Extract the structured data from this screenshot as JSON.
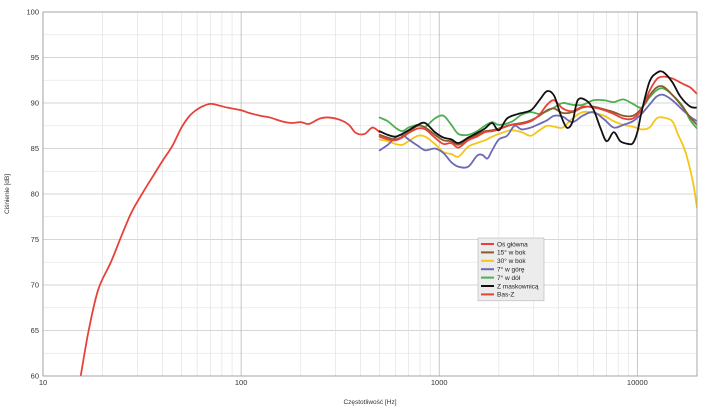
{
  "chart_data": {
    "type": "line",
    "xscale": "log",
    "xlim": [
      10,
      20000
    ],
    "ylim": [
      60,
      100
    ],
    "xlabel": "Częstotliwość [Hz]",
    "ylabel": "Ciśnienie [dB]",
    "grid": true,
    "legend_position": "center-right",
    "x_ticks": [
      10,
      100,
      1000,
      10000
    ],
    "x_tick_labels": [
      "10",
      "100",
      "1000",
      "10000"
    ],
    "y_ticks": [
      60,
      65,
      70,
      75,
      80,
      85,
      90,
      95,
      100
    ],
    "y_tick_labels": [
      "60",
      "65",
      "70",
      "75",
      "80",
      "85",
      "90",
      "95",
      "100"
    ],
    "series": [
      {
        "name": "Bas-Z",
        "color": "#e8413a",
        "points": [
          [
            15.5,
            60
          ],
          [
            17,
            65
          ],
          [
            19,
            69.5
          ],
          [
            22,
            72.5
          ],
          [
            25,
            75.5
          ],
          [
            28,
            78
          ],
          [
            32,
            80.2
          ],
          [
            36,
            82
          ],
          [
            40,
            83.6
          ],
          [
            45,
            85.3
          ],
          [
            50,
            87.3
          ],
          [
            55,
            88.6
          ],
          [
            60,
            89.3
          ],
          [
            65,
            89.7
          ],
          [
            70,
            89.9
          ],
          [
            75,
            89.8
          ],
          [
            85,
            89.5
          ],
          [
            100,
            89.2
          ],
          [
            110,
            88.9
          ],
          [
            125,
            88.6
          ],
          [
            140,
            88.4
          ],
          [
            160,
            88
          ],
          [
            180,
            87.8
          ],
          [
            200,
            87.9
          ],
          [
            220,
            87.7
          ],
          [
            250,
            88.3
          ],
          [
            280,
            88.4
          ],
          [
            320,
            88.1
          ],
          [
            350,
            87.6
          ],
          [
            380,
            86.7
          ],
          [
            420,
            86.6
          ],
          [
            460,
            87.3
          ],
          [
            500,
            86.8
          ]
        ]
      },
      {
        "name": "Oś główna",
        "color": "#e8413a",
        "points": [
          [
            500,
            86.3
          ],
          [
            550,
            86
          ],
          [
            600,
            85.9
          ],
          [
            650,
            86.2
          ],
          [
            700,
            86.7
          ],
          [
            780,
            87.2
          ],
          [
            850,
            87.1
          ],
          [
            950,
            86.2
          ],
          [
            1050,
            85.5
          ],
          [
            1150,
            85.6
          ],
          [
            1250,
            85.1
          ],
          [
            1400,
            85.9
          ],
          [
            1550,
            86.3
          ],
          [
            1700,
            86.8
          ],
          [
            1850,
            86.9
          ],
          [
            2000,
            87.1
          ],
          [
            2300,
            87.6
          ],
          [
            2600,
            87.7
          ],
          [
            2900,
            88
          ],
          [
            3200,
            88.7
          ],
          [
            3500,
            89.8
          ],
          [
            3800,
            90.3
          ],
          [
            4200,
            89.4
          ],
          [
            4700,
            89.1
          ],
          [
            5300,
            89.6
          ],
          [
            6000,
            89.5
          ],
          [
            6800,
            89.2
          ],
          [
            7600,
            88.8
          ],
          [
            8500,
            88.3
          ],
          [
            9500,
            88.3
          ],
          [
            10500,
            89.3
          ],
          [
            11500,
            91.3
          ],
          [
            12500,
            92.6
          ],
          [
            13500,
            92.9
          ],
          [
            15000,
            92.7
          ],
          [
            17000,
            92.1
          ],
          [
            18500,
            91.7
          ],
          [
            20000,
            91
          ]
        ]
      },
      {
        "name": "15° w bok",
        "color": "#8b5a2b",
        "points": [
          [
            500,
            86.5
          ],
          [
            550,
            86.2
          ],
          [
            600,
            86
          ],
          [
            650,
            86.3
          ],
          [
            700,
            86.8
          ],
          [
            780,
            87.5
          ],
          [
            850,
            87.3
          ],
          [
            950,
            86.5
          ],
          [
            1050,
            85.9
          ],
          [
            1150,
            85.8
          ],
          [
            1250,
            85.4
          ],
          [
            1400,
            86
          ],
          [
            1550,
            86.5
          ],
          [
            1700,
            86.9
          ],
          [
            1850,
            87
          ],
          [
            2000,
            87.2
          ],
          [
            2300,
            87.6
          ],
          [
            2600,
            87.8
          ],
          [
            2900,
            88.1
          ],
          [
            3200,
            88.6
          ],
          [
            3500,
            89.2
          ],
          [
            3800,
            89.4
          ],
          [
            4200,
            88.9
          ],
          [
            4700,
            89
          ],
          [
            5300,
            89.5
          ],
          [
            6000,
            89.6
          ],
          [
            6800,
            89.3
          ],
          [
            7600,
            89
          ],
          [
            8500,
            88.6
          ],
          [
            9500,
            88.6
          ],
          [
            10500,
            89.4
          ],
          [
            11500,
            90.8
          ],
          [
            12500,
            91.7
          ],
          [
            13500,
            91.8
          ],
          [
            15000,
            90.9
          ],
          [
            17000,
            89.5
          ],
          [
            18500,
            88.4
          ],
          [
            20000,
            87.6
          ]
        ]
      },
      {
        "name": "30° w bok",
        "color": "#f5c518",
        "points": [
          [
            500,
            86
          ],
          [
            550,
            85.8
          ],
          [
            600,
            85.5
          ],
          [
            650,
            85.4
          ],
          [
            700,
            85.8
          ],
          [
            780,
            86.4
          ],
          [
            850,
            86.3
          ],
          [
            950,
            85.5
          ],
          [
            1050,
            84.6
          ],
          [
            1150,
            84.4
          ],
          [
            1250,
            84.1
          ],
          [
            1400,
            85.2
          ],
          [
            1550,
            85.6
          ],
          [
            1700,
            85.9
          ],
          [
            1850,
            86.3
          ],
          [
            2000,
            86.6
          ],
          [
            2300,
            87
          ],
          [
            2600,
            86.8
          ],
          [
            2900,
            86.4
          ],
          [
            3200,
            87
          ],
          [
            3500,
            87.5
          ],
          [
            3800,
            87.4
          ],
          [
            4200,
            87.3
          ],
          [
            4700,
            88.3
          ],
          [
            5300,
            89
          ],
          [
            6000,
            88.9
          ],
          [
            6800,
            88.6
          ],
          [
            7600,
            88
          ],
          [
            8500,
            87.6
          ],
          [
            9500,
            87.4
          ],
          [
            10500,
            87.1
          ],
          [
            11500,
            87.3
          ],
          [
            12500,
            88.3
          ],
          [
            13500,
            88.4
          ],
          [
            15000,
            88
          ],
          [
            16000,
            86.6
          ],
          [
            17500,
            84.6
          ],
          [
            19000,
            81.5
          ],
          [
            20000,
            78.5
          ]
        ]
      },
      {
        "name": "7° w górę",
        "color": "#6a6ab8",
        "points": [
          [
            500,
            84.8
          ],
          [
            550,
            85.4
          ],
          [
            600,
            86.2
          ],
          [
            650,
            86.5
          ],
          [
            700,
            86
          ],
          [
            780,
            85.3
          ],
          [
            850,
            84.8
          ],
          [
            950,
            85
          ],
          [
            1050,
            84.5
          ],
          [
            1150,
            83.5
          ],
          [
            1250,
            83
          ],
          [
            1400,
            83
          ],
          [
            1550,
            84.2
          ],
          [
            1650,
            84.3
          ],
          [
            1750,
            83.9
          ],
          [
            1850,
            84.8
          ],
          [
            2000,
            86
          ],
          [
            2200,
            86.4
          ],
          [
            2400,
            87.5
          ],
          [
            2600,
            87.1
          ],
          [
            2900,
            87.3
          ],
          [
            3200,
            87.7
          ],
          [
            3500,
            88.1
          ],
          [
            3800,
            88.6
          ],
          [
            4200,
            88.5
          ],
          [
            4700,
            87.9
          ],
          [
            5300,
            88.6
          ],
          [
            6000,
            89
          ],
          [
            6800,
            88.2
          ],
          [
            7600,
            87.3
          ],
          [
            8500,
            87.6
          ],
          [
            9500,
            88
          ],
          [
            10500,
            88.8
          ],
          [
            11500,
            89.8
          ],
          [
            12500,
            90.7
          ],
          [
            13500,
            90.9
          ],
          [
            15000,
            90.3
          ],
          [
            17000,
            89.2
          ],
          [
            18500,
            88.5
          ],
          [
            20000,
            88
          ]
        ]
      },
      {
        "name": "7° w dół",
        "color": "#4caf50",
        "points": [
          [
            500,
            88.4
          ],
          [
            550,
            88
          ],
          [
            600,
            87.3
          ],
          [
            650,
            86.9
          ],
          [
            700,
            87.3
          ],
          [
            780,
            87.6
          ],
          [
            850,
            87.4
          ],
          [
            950,
            88.3
          ],
          [
            1050,
            88.6
          ],
          [
            1150,
            87.6
          ],
          [
            1250,
            86.6
          ],
          [
            1400,
            86.5
          ],
          [
            1550,
            86.9
          ],
          [
            1700,
            87.5
          ],
          [
            1850,
            87.9
          ],
          [
            2000,
            87.6
          ],
          [
            2300,
            87.9
          ],
          [
            2600,
            88.7
          ],
          [
            2900,
            89
          ],
          [
            3200,
            88.8
          ],
          [
            3500,
            89.1
          ],
          [
            3800,
            89.5
          ],
          [
            4200,
            90
          ],
          [
            4700,
            89.8
          ],
          [
            5300,
            89.8
          ],
          [
            6000,
            90.3
          ],
          [
            6800,
            90.3
          ],
          [
            7600,
            90.1
          ],
          [
            8500,
            90.4
          ],
          [
            9500,
            89.9
          ],
          [
            10500,
            89.5
          ],
          [
            11500,
            90.6
          ],
          [
            12500,
            91.4
          ],
          [
            13500,
            91.6
          ],
          [
            15000,
            90.9
          ],
          [
            17000,
            89.6
          ],
          [
            18500,
            88.1
          ],
          [
            20000,
            87.2
          ]
        ]
      },
      {
        "name": "Z maskownicą",
        "color": "#111111",
        "points": [
          [
            500,
            86.9
          ],
          [
            550,
            86.5
          ],
          [
            600,
            86.3
          ],
          [
            650,
            86.6
          ],
          [
            700,
            87
          ],
          [
            780,
            87.6
          ],
          [
            850,
            87.8
          ],
          [
            950,
            86.8
          ],
          [
            1050,
            86.2
          ],
          [
            1150,
            86
          ],
          [
            1250,
            85.6
          ],
          [
            1400,
            86.2
          ],
          [
            1550,
            86.7
          ],
          [
            1700,
            87.2
          ],
          [
            1850,
            87.8
          ],
          [
            2000,
            87
          ],
          [
            2200,
            88.3
          ],
          [
            2500,
            88.8
          ],
          [
            2900,
            89.2
          ],
          [
            3200,
            90.3
          ],
          [
            3500,
            91.3
          ],
          [
            3800,
            90.8
          ],
          [
            4100,
            88.7
          ],
          [
            4400,
            87.3
          ],
          [
            4700,
            87.9
          ],
          [
            5000,
            90.3
          ],
          [
            5500,
            90.3
          ],
          [
            6000,
            89.3
          ],
          [
            6500,
            87.3
          ],
          [
            7000,
            85.8
          ],
          [
            7600,
            86.8
          ],
          [
            8200,
            85.8
          ],
          [
            9000,
            85.5
          ],
          [
            9500,
            85.6
          ],
          [
            10000,
            86.8
          ],
          [
            10500,
            89
          ],
          [
            11500,
            92.3
          ],
          [
            12500,
            93.3
          ],
          [
            13500,
            93.4
          ],
          [
            15000,
            92.3
          ],
          [
            16500,
            90.7
          ],
          [
            18500,
            89.6
          ],
          [
            20000,
            89.5
          ]
        ]
      }
    ],
    "legend": [
      {
        "label": "Oś główna",
        "color": "#e8413a"
      },
      {
        "label": "15° w bok",
        "color": "#8b5a2b"
      },
      {
        "label": "30° w bok",
        "color": "#f5c518"
      },
      {
        "label": "7° w górę",
        "color": "#6a6ab8"
      },
      {
        "label": "7° w dół",
        "color": "#4caf50"
      },
      {
        "label": "Z maskownicą",
        "color": "#111111"
      },
      {
        "label": "Bas-Z",
        "color": "#e8413a"
      }
    ]
  }
}
